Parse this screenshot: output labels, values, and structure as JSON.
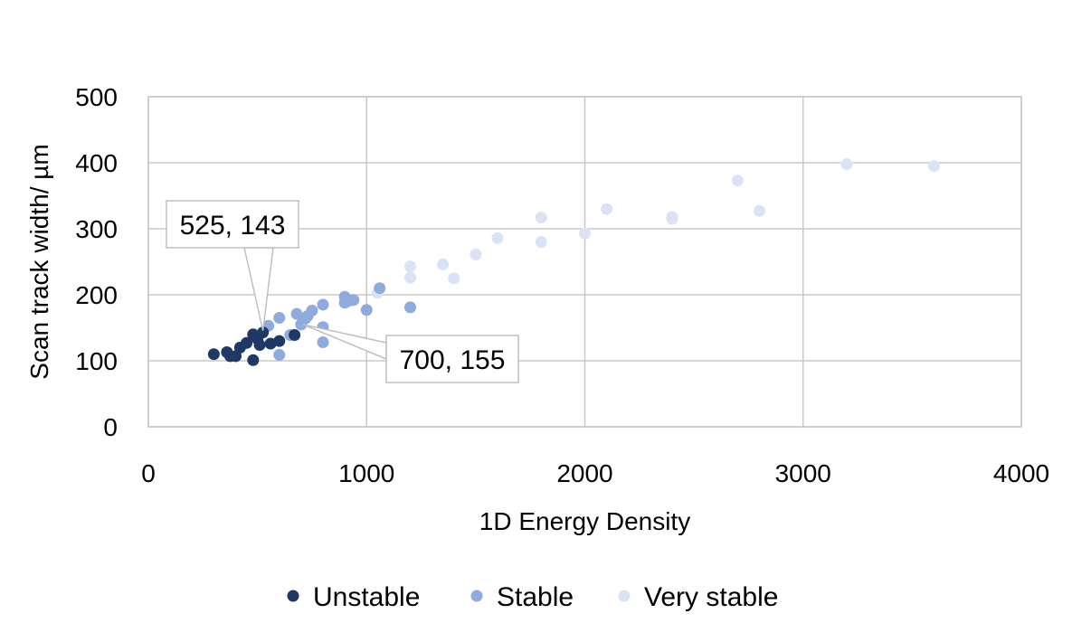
{
  "chart_data": {
    "type": "scatter",
    "title": "",
    "xlabel": "1D Energy Density",
    "ylabel": "Scan track width/ µm",
    "xlim": [
      0,
      4000
    ],
    "ylim": [
      0,
      500
    ],
    "x_ticks": [
      0,
      1000,
      2000,
      3000,
      4000
    ],
    "y_ticks": [
      0,
      100,
      200,
      300,
      400,
      500
    ],
    "grid": true,
    "legend_position": "bottom",
    "series": [
      {
        "name": "Unstable",
        "color": "#203864",
        "points": [
          [
            300,
            110
          ],
          [
            360,
            113
          ],
          [
            375,
            107
          ],
          [
            400,
            107
          ],
          [
            420,
            120
          ],
          [
            450,
            127
          ],
          [
            480,
            140
          ],
          [
            480,
            101
          ],
          [
            500,
            133
          ],
          [
            510,
            124
          ],
          [
            525,
            143
          ],
          [
            560,
            126
          ],
          [
            600,
            130
          ],
          [
            670,
            139
          ]
        ]
      },
      {
        "name": "Stable",
        "color": "#8faadc",
        "points": [
          [
            550,
            153
          ],
          [
            600,
            165
          ],
          [
            600,
            109
          ],
          [
            650,
            139
          ],
          [
            680,
            171
          ],
          [
            700,
            155
          ],
          [
            720,
            164
          ],
          [
            730,
            168
          ],
          [
            750,
            176
          ],
          [
            800,
            185
          ],
          [
            800,
            151
          ],
          [
            800,
            128
          ],
          [
            900,
            197
          ],
          [
            900,
            188
          ],
          [
            920,
            191
          ],
          [
            940,
            192
          ],
          [
            1000,
            177
          ],
          [
            1060,
            210
          ],
          [
            1200,
            181
          ]
        ]
      },
      {
        "name": "Very stable",
        "color": "#dae3f3",
        "points": [
          [
            1050,
            203
          ],
          [
            1200,
            243
          ],
          [
            1200,
            226
          ],
          [
            1350,
            246
          ],
          [
            1400,
            225
          ],
          [
            1500,
            261
          ],
          [
            1600,
            286
          ],
          [
            1800,
            317
          ],
          [
            1800,
            280
          ],
          [
            2000,
            293
          ],
          [
            2100,
            330
          ],
          [
            2400,
            318
          ],
          [
            2400,
            315
          ],
          [
            2700,
            373
          ],
          [
            2800,
            327
          ],
          [
            3200,
            398
          ],
          [
            3600,
            395
          ]
        ]
      }
    ],
    "annotations": [
      {
        "label": "525, 143",
        "x": 525,
        "y": 143
      },
      {
        "label": "700, 155",
        "x": 700,
        "y": 155
      }
    ]
  }
}
